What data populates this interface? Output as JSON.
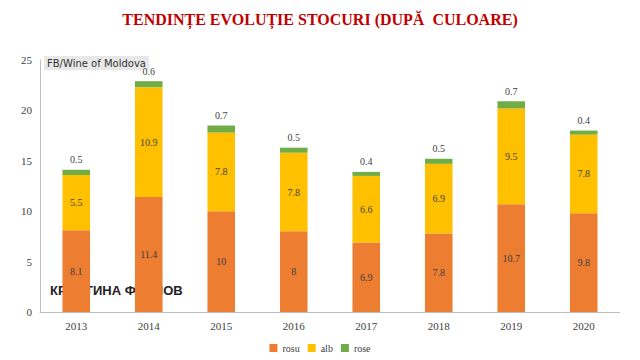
{
  "chart_data": {
    "type": "bar",
    "title": "TENDINȚE EVOLUȚIE STOCURI (DUPĂ  CULOARE)",
    "annotations": [
      "FB/Wine of Moldova",
      "КРИСТИНА ФРОЛОВ"
    ],
    "categories": [
      "2013",
      "2014",
      "2015",
      "2016",
      "2017",
      "2018",
      "2019",
      "2020"
    ],
    "series": [
      {
        "name": "rosu",
        "color": "#ed7d31",
        "values": [
          8.1,
          11.4,
          10,
          8,
          6.9,
          7.8,
          10.7,
          9.8
        ]
      },
      {
        "name": "alb",
        "color": "#ffc000",
        "values": [
          5.5,
          10.9,
          7.8,
          7.8,
          6.6,
          6.9,
          9.5,
          7.8
        ]
      },
      {
        "name": "rose",
        "color": "#70ad47",
        "values": [
          0.5,
          0.6,
          0.7,
          0.5,
          0.4,
          0.5,
          0.7,
          0.4
        ]
      }
    ],
    "ylim": [
      0,
      25
    ],
    "yticks": [
      0,
      5,
      10,
      15,
      20,
      25
    ],
    "stacked": true,
    "data_labels": true,
    "grid": false,
    "legend": "bottom"
  }
}
